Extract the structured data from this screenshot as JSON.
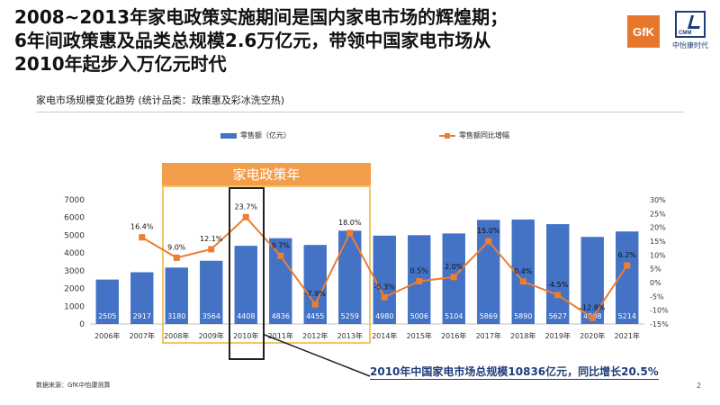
{
  "title": {
    "line1": "2008~2013年家电政策实施期间是国内家电市场的辉煌期；",
    "line2": "6年间政策惠及品类总规模2.6万亿元，带领中国家电市场从",
    "line3": "2010年起步入万亿元时代"
  },
  "logos": {
    "gfk": "GfK",
    "cmm_text": "CMM",
    "cmm_name": "中怡康时代"
  },
  "subtitle": "家电市场规模变化趋势 (统计品类：政策惠及彩冰洗空热)",
  "policy_label": "家电政策年",
  "callout": "2010年中国家电市场总规模10836亿元，同比增长20.5%",
  "source": "数据来源：GfK中怡康测算",
  "page_number": "2",
  "colors": {
    "bar": "#4472c4",
    "line": "#ed7d31",
    "policy": "#f29d49"
  },
  "chart_data": {
    "type": "bar",
    "categories": [
      "2006年",
      "2007年",
      "2008年",
      "2009年",
      "2010年",
      "2011年",
      "2012年",
      "2013年",
      "2014年",
      "2015年",
      "2016年",
      "2017年",
      "2018年",
      "2019年",
      "2020年",
      "2021年"
    ],
    "series": [
      {
        "name": "零售额（亿元）",
        "type": "bar",
        "axis": "left",
        "values": [
          2505,
          2917,
          3180,
          3564,
          4408,
          4836,
          4455,
          5259,
          4980,
          5006,
          5104,
          5869,
          5890,
          5627,
          4908,
          5214
        ]
      },
      {
        "name": "零售额同比增幅",
        "type": "line",
        "axis": "right",
        "values": [
          null,
          16.4,
          9.0,
          12.1,
          23.7,
          9.7,
          -7.9,
          18.0,
          -5.3,
          0.5,
          2.0,
          15.0,
          0.4,
          -4.5,
          -12.8,
          6.2
        ],
        "labels": [
          "",
          "16.4%",
          "9.0%",
          "12.1%",
          "23.7%",
          "9.7%",
          "-7.9%",
          "18.0%",
          "-5.3%",
          "0.5%",
          "2.0%",
          "15.0%",
          "0.4%",
          "-4.5%",
          "-12.8%",
          "6.2%"
        ]
      }
    ],
    "y_left": {
      "ylim": [
        0,
        7000
      ],
      "ticks": [
        "0",
        "1000",
        "2000",
        "3000",
        "4000",
        "5000",
        "6000",
        "7000"
      ]
    },
    "y_right": {
      "ylim": [
        -15,
        30
      ],
      "ticks": [
        "-15%",
        "-10%",
        "-5%",
        "0%",
        "5%",
        "10%",
        "15%",
        "20%",
        "25%",
        "30%"
      ]
    },
    "legend_placement": "top",
    "grid": false
  }
}
